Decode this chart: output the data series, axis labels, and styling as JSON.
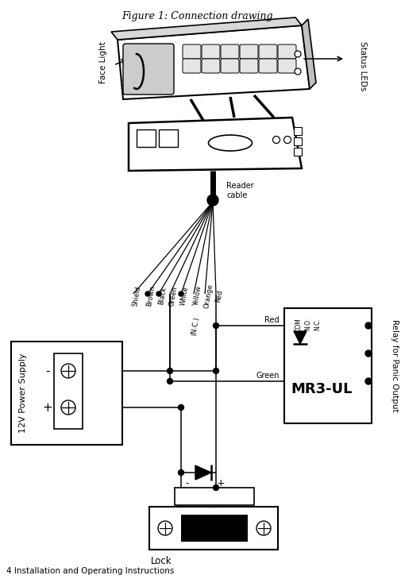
{
  "title": "Figure 1: Connection drawing",
  "footer": "4 Installation and Operating Instructions",
  "bg_color": "#ffffff",
  "line_color": "#000000",
  "labels": {
    "face_light": "Face Light",
    "status_leds": "Status LEDs",
    "reader_cable": "Reader\ncable",
    "power_supply": "12V Power Supply",
    "relay": "Relay for Panic Output",
    "mr3ul": "MR3-UL",
    "lock": "Lock",
    "shield": "Shield",
    "brown": "Brown",
    "black": "Black",
    "green_wire": "Green",
    "white": "White",
    "nc": "(N.C.)",
    "yellow": "Yellow",
    "orange": "Orange",
    "red_wire": "Red",
    "red_label": "Red",
    "green_label": "Green",
    "com": "COM",
    "no": "N.O.",
    "nc2": "N.C.",
    "minus": "-",
    "plus": "+"
  }
}
